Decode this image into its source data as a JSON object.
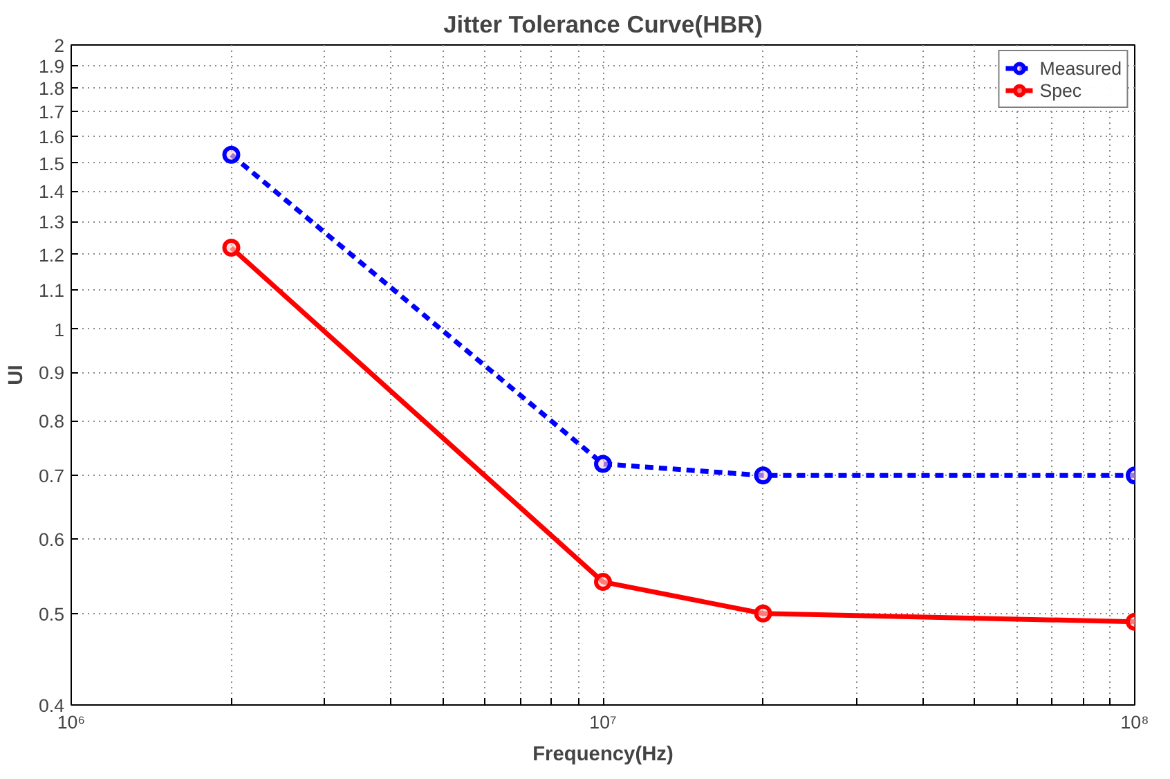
{
  "chart_data": {
    "type": "line",
    "title": "Jitter Tolerance Curve(HBR)",
    "xlabel": "Frequency(Hz)",
    "ylabel": "UI",
    "x": [
      2000000,
      10000000,
      20000000,
      100000000
    ],
    "series": [
      {
        "name": "Measured",
        "color": "#0000ff",
        "line_style": "dashed",
        "values": [
          1.53,
          0.72,
          0.7,
          0.7
        ]
      },
      {
        "name": "Spec",
        "color": "#ff0000",
        "line_style": "solid",
        "values": [
          1.22,
          0.54,
          0.5,
          0.49
        ]
      }
    ],
    "log": "xy",
    "xlim": [
      1000000,
      100000000
    ],
    "ylim": [
      0.4,
      2
    ],
    "xticks": [
      {
        "value": 1000000,
        "label": "10⁶"
      },
      {
        "value": 2000000,
        "label": null
      },
      {
        "value": 3000000,
        "label": null
      },
      {
        "value": 4000000,
        "label": null
      },
      {
        "value": 5000000,
        "label": null
      },
      {
        "value": 6000000,
        "label": null
      },
      {
        "value": 7000000,
        "label": null
      },
      {
        "value": 8000000,
        "label": null
      },
      {
        "value": 9000000,
        "label": null
      },
      {
        "value": 10000000,
        "label": "10⁷"
      },
      {
        "value": 20000000,
        "label": null
      },
      {
        "value": 30000000,
        "label": null
      },
      {
        "value": 40000000,
        "label": null
      },
      {
        "value": 50000000,
        "label": null
      },
      {
        "value": 60000000,
        "label": null
      },
      {
        "value": 70000000,
        "label": null
      },
      {
        "value": 80000000,
        "label": null
      },
      {
        "value": 90000000,
        "label": null
      },
      {
        "value": 100000000,
        "label": "10⁸"
      }
    ],
    "yticks": [
      0.4,
      0.5,
      0.6,
      0.7,
      0.8,
      0.9,
      1,
      1.1,
      1.2,
      1.3,
      1.4,
      1.5,
      1.6,
      1.7,
      1.8,
      1.9,
      2
    ],
    "grid": true,
    "legend": "top right",
    "marker": "circle"
  }
}
